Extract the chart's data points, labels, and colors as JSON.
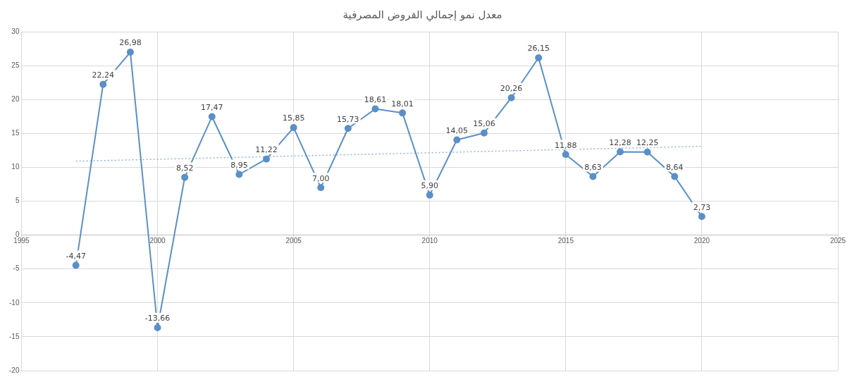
{
  "chart_data": {
    "type": "line",
    "title": "معدل نمو إجمالي القروض المصرفية",
    "x": [
      1997,
      1998,
      1999,
      2000,
      2001,
      2002,
      2003,
      2004,
      2005,
      2006,
      2007,
      2008,
      2009,
      2010,
      2011,
      2012,
      2013,
      2014,
      2015,
      2016,
      2017,
      2018,
      2019,
      2020
    ],
    "series": [
      {
        "color": "#5b8fc7",
        "values": [
          -4.47,
          22.24,
          26.98,
          -13.66,
          8.52,
          17.47,
          8.95,
          11.22,
          15.85,
          7.0,
          15.73,
          18.61,
          18.01,
          5.9,
          14.05,
          15.06,
          20.26,
          26.15,
          11.88,
          8.63,
          12.28,
          12.25,
          8.64,
          2.73
        ],
        "value_labels": [
          "-4,47",
          "22,24",
          "26,98",
          "-13,66",
          "8,52",
          "17,47",
          "8,95",
          "11,22",
          "15,85",
          "7,00",
          "15,73",
          "18,61",
          "18,01",
          "5,90",
          "14,05",
          "15,06",
          "20,26",
          "26,15",
          "11,88",
          "8,63",
          "12,28",
          "12,25",
          "8,64",
          "2,73"
        ]
      },
      {
        "type": "line",
        "color": "#8fb4dc",
        "x": [
          1997,
          2020
        ],
        "values": [
          10.9,
          13.1
        ],
        "line_style": "dotted",
        "marker": "none"
      }
    ],
    "xlim": [
      1995,
      2025
    ],
    "xticks": [
      1995,
      2000,
      2005,
      2010,
      2015,
      2020,
      2025
    ],
    "ylim": [
      -20,
      30
    ],
    "yticks": [
      -20,
      -15,
      -10,
      -5,
      0,
      5,
      10,
      15,
      20,
      25,
      30
    ],
    "grid": true,
    "legend": false,
    "marker": "circle",
    "line_style": "solid"
  }
}
